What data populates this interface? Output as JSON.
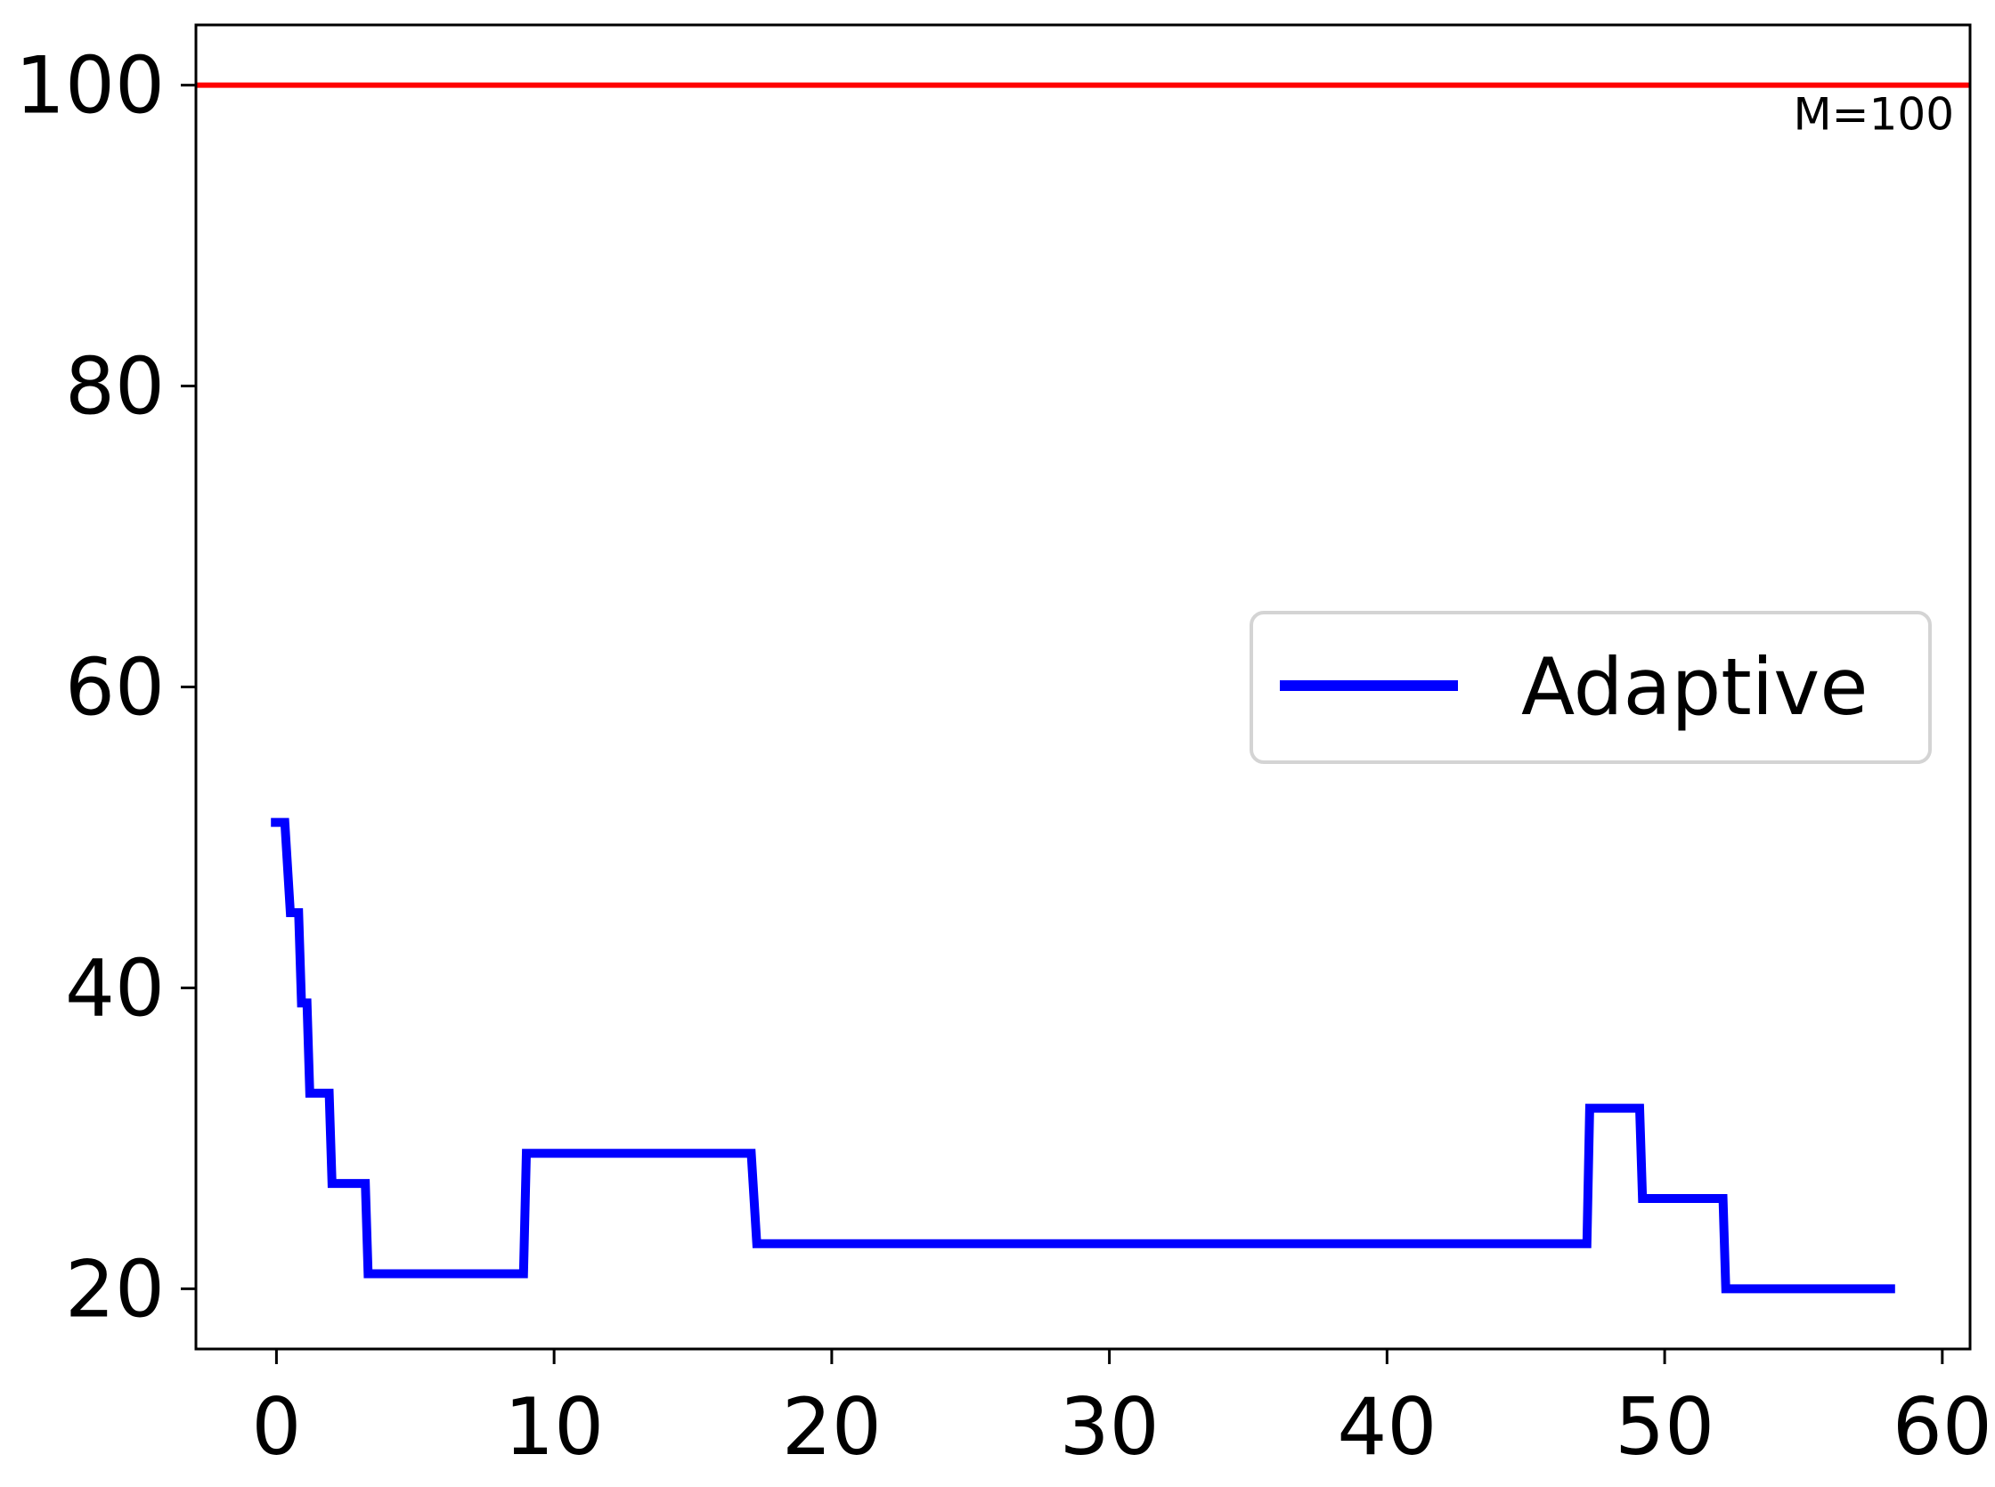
{
  "chart_data": {
    "type": "line",
    "title": "",
    "xlabel": "",
    "ylabel": "",
    "xlim": [
      -2.9,
      61.0
    ],
    "ylim": [
      16,
      104
    ],
    "xticks": [
      0,
      10,
      20,
      30,
      40,
      50,
      60
    ],
    "yticks": [
      20,
      40,
      60,
      80,
      100
    ],
    "grid": false,
    "legend_position": "center-right",
    "reference_line": {
      "y": 100,
      "label": "M=100",
      "color": "#ff0000"
    },
    "series": [
      {
        "name": "Adaptive",
        "color": "#0000ff",
        "step": true,
        "points": [
          [
            -0.2,
            51
          ],
          [
            0.3,
            51
          ],
          [
            0.5,
            45
          ],
          [
            0.8,
            45
          ],
          [
            0.9,
            39
          ],
          [
            1.1,
            39
          ],
          [
            1.2,
            33
          ],
          [
            1.9,
            33
          ],
          [
            2.0,
            27
          ],
          [
            3.2,
            27
          ],
          [
            3.3,
            21
          ],
          [
            8.9,
            21
          ],
          [
            9.0,
            29
          ],
          [
            17.1,
            29
          ],
          [
            17.3,
            23
          ],
          [
            47.2,
            23
          ],
          [
            47.3,
            32
          ],
          [
            49.1,
            32
          ],
          [
            49.2,
            26
          ],
          [
            52.1,
            26
          ],
          [
            52.2,
            20
          ],
          [
            58.3,
            20
          ]
        ]
      }
    ]
  }
}
